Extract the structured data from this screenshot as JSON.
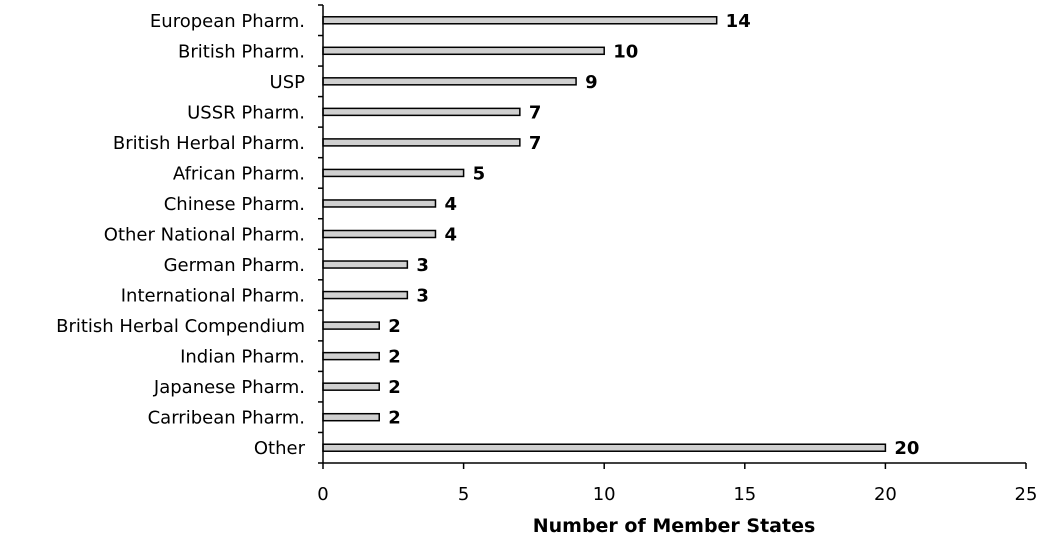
{
  "chart_data": {
    "type": "bar",
    "orientation": "horizontal",
    "categories": [
      "European Pharm.",
      "British Pharm.",
      "USP",
      "USSR Pharm.",
      "British Herbal Pharm.",
      "African Pharm.",
      "Chinese Pharm.",
      "Other National Pharm.",
      "German Pharm.",
      "International Pharm.",
      "British Herbal Compendium",
      "Indian Pharm.",
      "Japanese Pharm.",
      "Carribean Pharm.",
      "Other"
    ],
    "values": [
      14,
      10,
      9,
      7,
      7,
      5,
      4,
      4,
      3,
      3,
      2,
      2,
      2,
      2,
      20
    ],
    "value_labels": [
      "14",
      "10",
      "9",
      "7",
      "7",
      "5",
      "4",
      "4",
      "3",
      "3",
      "2",
      "2",
      "2",
      "2",
      "20"
    ],
    "xlabel": "Number of Member States",
    "ylabel": "",
    "xlim": [
      0,
      25
    ],
    "xticks": [
      0,
      5,
      10,
      15,
      20,
      25
    ],
    "xtick_labels": [
      "0",
      "5",
      "10",
      "15",
      "20",
      "25"
    ],
    "grid": false,
    "legend": "none",
    "bar_fill": "#d0d0d0",
    "bar_stroke": "#000000"
  }
}
